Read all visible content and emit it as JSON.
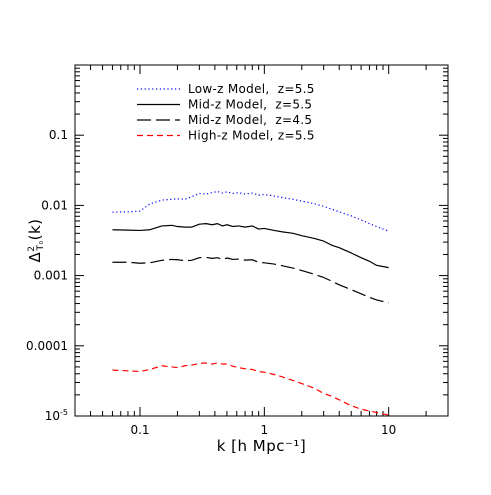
{
  "chart_data": {
    "type": "line",
    "title": "",
    "xlabel": "k [h Mpc⁻¹]",
    "ylabel_main": "Δ",
    "ylabel_sup": "2",
    "ylabel_sub": "T₀",
    "ylabel_tail": "(k)",
    "x_scale": "log",
    "y_scale": "log",
    "xlim": [
      0.03,
      30
    ],
    "ylim": [
      1e-05,
      1
    ],
    "grid": false,
    "legend_position": "top-left",
    "x_tick_labels": [
      {
        "value": 0.1,
        "label": "0.1"
      },
      {
        "value": 1,
        "label": "1"
      },
      {
        "value": 10,
        "label": "10"
      }
    ],
    "y_tick_labels": [
      {
        "value": 1e-05,
        "base": "10",
        "exp": "-5"
      },
      {
        "value": 0.0001,
        "label": "0.0001"
      },
      {
        "value": 0.001,
        "label": "0.001"
      },
      {
        "value": 0.01,
        "label": "0.01"
      },
      {
        "value": 0.1,
        "label": "0.1"
      }
    ],
    "x": [
      0.06,
      0.08,
      0.1,
      0.12,
      0.15,
      0.18,
      0.2,
      0.23,
      0.26,
      0.3,
      0.34,
      0.38,
      0.42,
      0.46,
      0.5,
      0.56,
      0.62,
      0.7,
      0.8,
      0.9,
      1.0,
      1.2,
      1.4,
      1.7,
      2.0,
      2.5,
      3.0,
      3.5,
      4.0,
      5.0,
      6.0,
      7.0,
      8.0,
      10.0
    ],
    "series": [
      {
        "name": "Low-z Model,  z=5.5",
        "color": "#0000ff",
        "dash": "dotted",
        "values": [
          0.008,
          0.0081,
          0.0083,
          0.0105,
          0.0119,
          0.0122,
          0.0124,
          0.0122,
          0.0133,
          0.0148,
          0.0145,
          0.0152,
          0.0158,
          0.015,
          0.0156,
          0.0148,
          0.0152,
          0.0145,
          0.015,
          0.014,
          0.0143,
          0.0136,
          0.0129,
          0.0122,
          0.0115,
          0.0106,
          0.0097,
          0.0088,
          0.0081,
          0.0071,
          0.0062,
          0.0055,
          0.005,
          0.0043
        ]
      },
      {
        "name": "Mid-z Model,  z=5.5",
        "color": "#000000",
        "dash": "solid",
        "values": [
          0.0045,
          0.00445,
          0.0044,
          0.0045,
          0.0051,
          0.0052,
          0.005,
          0.0049,
          0.0049,
          0.0054,
          0.0055,
          0.0053,
          0.0055,
          0.0051,
          0.0053,
          0.005,
          0.0051,
          0.0049,
          0.0051,
          0.0046,
          0.0047,
          0.0044,
          0.0042,
          0.004,
          0.0037,
          0.0034,
          0.0031,
          0.0027,
          0.0025,
          0.0021,
          0.0018,
          0.0016,
          0.0014,
          0.0013
        ]
      },
      {
        "name": "Mid-z Model,  z=4.5",
        "color": "#000000",
        "dash": "long-dash",
        "values": [
          0.00155,
          0.00155,
          0.0015,
          0.00152,
          0.00165,
          0.0017,
          0.00168,
          0.00163,
          0.00165,
          0.0018,
          0.00182,
          0.00176,
          0.0018,
          0.0017,
          0.00178,
          0.0017,
          0.00172,
          0.00166,
          0.00168,
          0.00155,
          0.00152,
          0.00146,
          0.00138,
          0.00128,
          0.00118,
          0.00105,
          0.00094,
          0.00083,
          0.00074,
          0.00063,
          0.00055,
          0.00049,
          0.00045,
          0.00041
        ]
      },
      {
        "name": "High-z Model, z=5.5",
        "color": "#ff0000",
        "dash": "dashed",
        "values": [
          4.5e-05,
          4.4e-05,
          4.3e-05,
          4.6e-05,
          5.2e-05,
          5e-05,
          4.9e-05,
          5.2e-05,
          5.3e-05,
          5.6e-05,
          5.7e-05,
          5.5e-05,
          5.7e-05,
          5.5e-05,
          5.5e-05,
          5.1e-05,
          4.9e-05,
          4.7e-05,
          4.6e-05,
          4.3e-05,
          4.2e-05,
          3.9e-05,
          3.6e-05,
          3.2e-05,
          2.9e-05,
          2.5e-05,
          2.1e-05,
          1.9e-05,
          1.7e-05,
          1.4e-05,
          1.25e-05,
          1.18e-05,
          1.12e-05,
          1.03e-05
        ]
      }
    ]
  }
}
